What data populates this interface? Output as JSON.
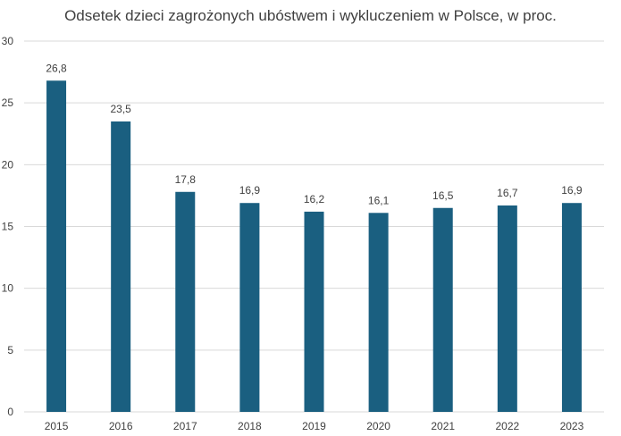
{
  "chart_data": {
    "type": "bar",
    "title": "Odsetek dzieci zagrożonych ubóstwem i wykluczeniem w Polsce, w proc.",
    "categories": [
      "2015",
      "2016",
      "2017",
      "2018",
      "2019",
      "2020",
      "2021",
      "2022",
      "2023"
    ],
    "values": [
      26.8,
      23.5,
      17.8,
      16.9,
      16.2,
      16.1,
      16.5,
      16.7,
      16.9
    ],
    "data_labels": [
      "26,8",
      "23,5",
      "17,8",
      "16,9",
      "16,2",
      "16,1",
      "16,5",
      "16,7",
      "16,9"
    ],
    "y_ticks": [
      0,
      5,
      10,
      15,
      20,
      25,
      30
    ],
    "ylim": [
      0,
      30
    ],
    "grid": true,
    "legend": "none",
    "bar_color": "#1a5f80",
    "grid_color": "#d9d9d9"
  }
}
